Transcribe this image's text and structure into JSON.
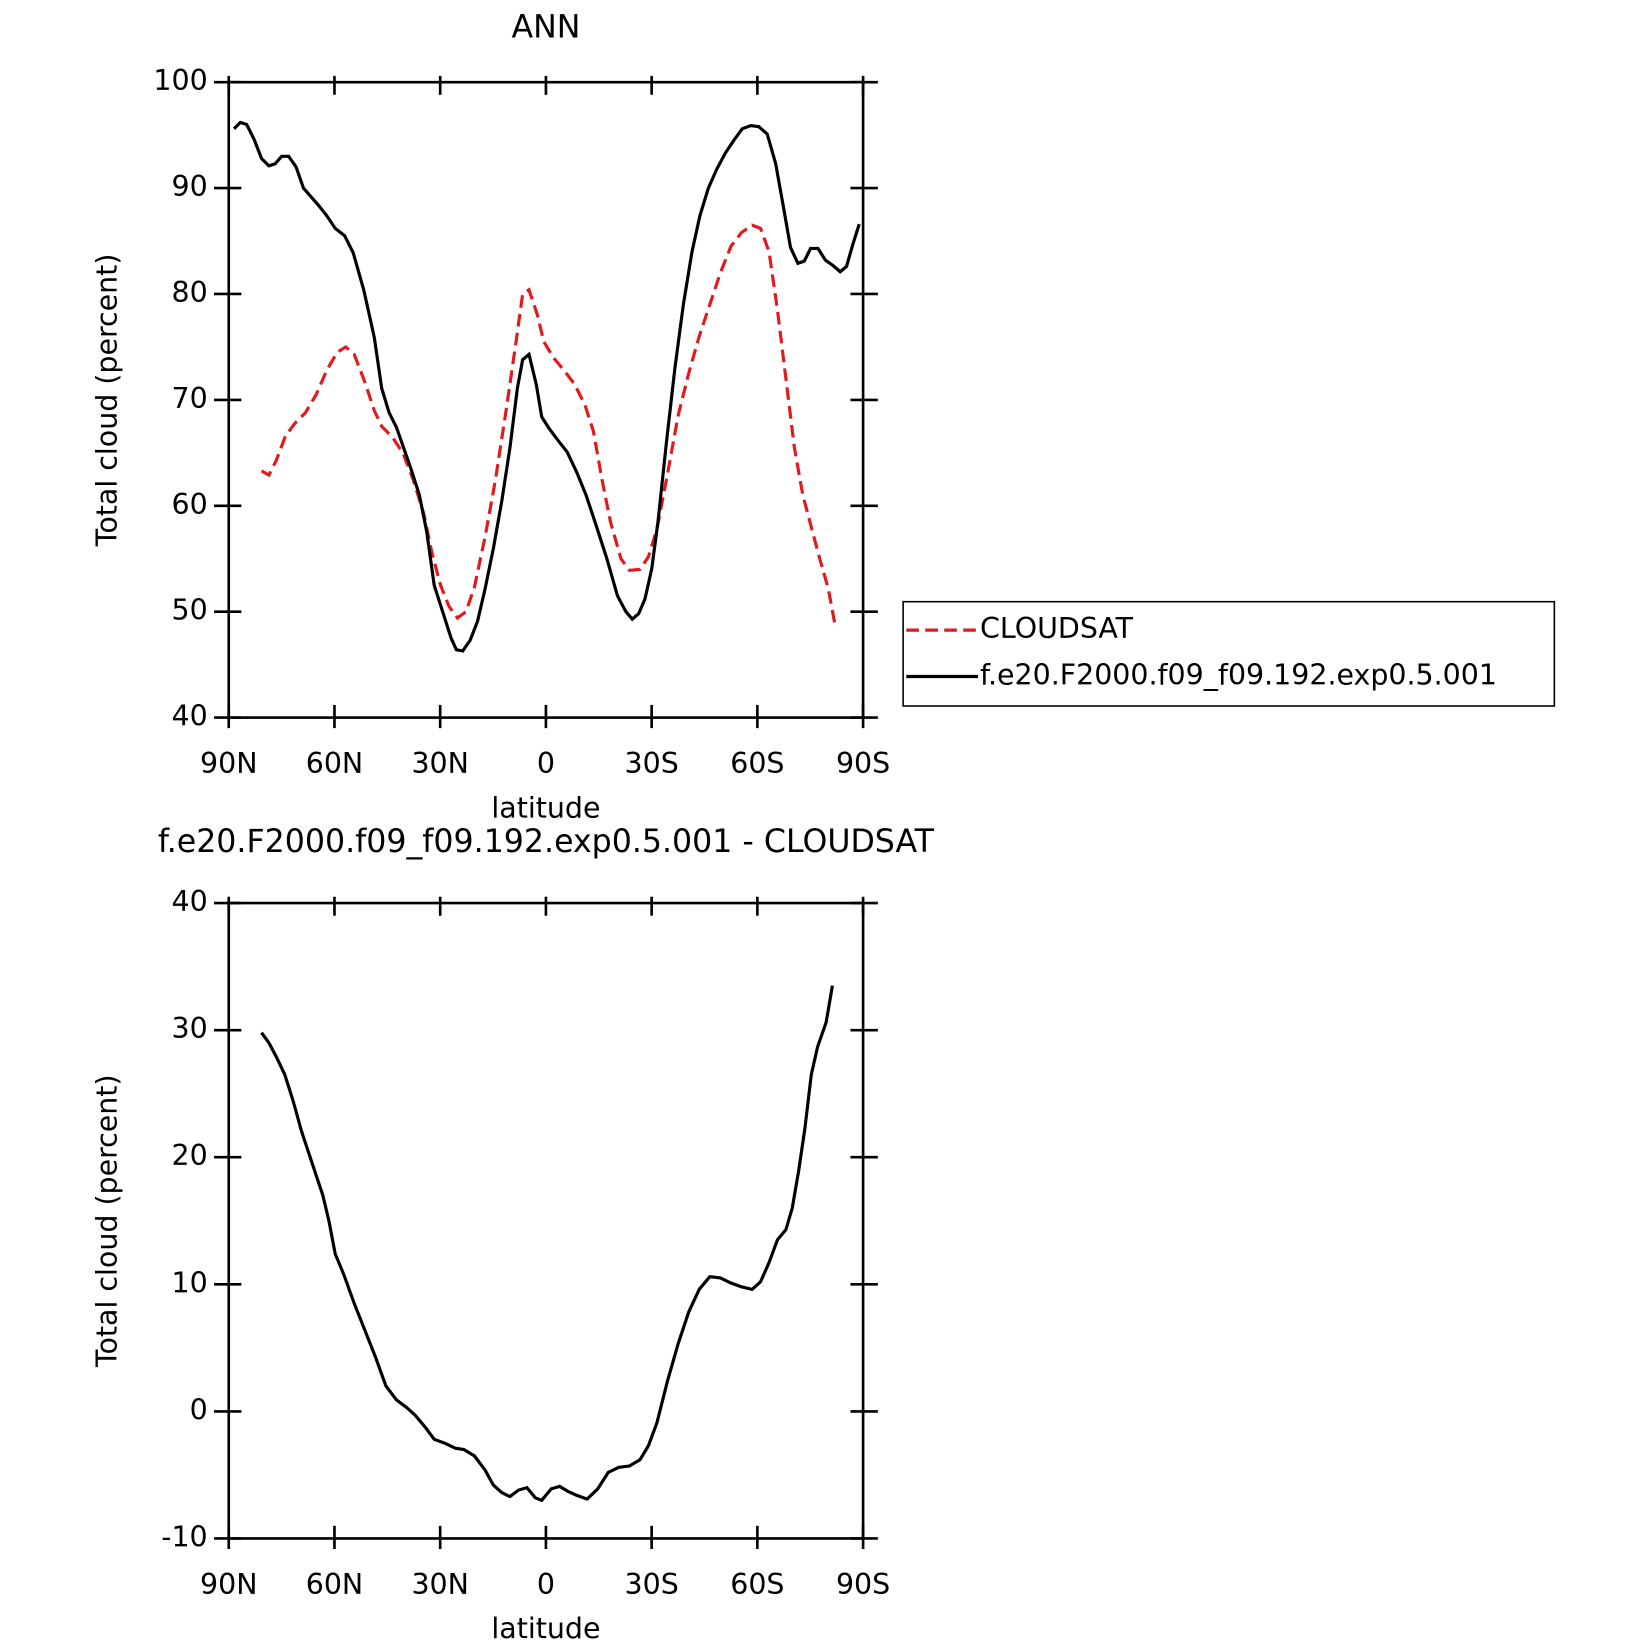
{
  "chart_data": [
    {
      "type": "line",
      "title": "ANN",
      "xlabel": "latitude",
      "ylabel": "Total cloud (percent)",
      "xlim": [
        90,
        -90
      ],
      "xticks": [
        {
          "value": 90,
          "label": "90N"
        },
        {
          "value": 60,
          "label": "60N"
        },
        {
          "value": 30,
          "label": "30N"
        },
        0,
        {
          "value": -30,
          "label": "30S"
        },
        {
          "value": -60,
          "label": "60S"
        },
        {
          "value": -90,
          "label": "90S"
        }
      ],
      "ylim": [
        40,
        100
      ],
      "yticks": [
        40,
        50,
        60,
        70,
        80,
        90,
        100
      ],
      "legend": "right",
      "series": [
        {
          "name": "CLOUDSAT",
          "color": "#e31a1c",
          "dashed": true,
          "x": [
            80.7,
            78.6,
            76.5,
            73.9,
            71.2,
            68.2,
            65.2,
            62.2,
            59.2,
            56.8,
            54.4,
            51.4,
            48.7,
            46.6,
            43.6,
            40.6,
            37.7,
            34.7,
            32.3,
            29.9,
            27.5,
            25.1,
            22.7,
            20.3,
            17.3,
            14.3,
            11.3,
            8.3,
            6.6,
            4.8,
            2.4,
            0.6,
            -2.1,
            -5.1,
            -8.1,
            -11.1,
            -13.5,
            -15.9,
            -18.3,
            -21.3,
            -23.7,
            -26.7,
            -29.1,
            -31.5,
            -34.5,
            -37.5,
            -40.5,
            -43.5,
            -46.5,
            -49.5,
            -52.5,
            -55.5,
            -58.5,
            -60.9,
            -63.3,
            -65.7,
            -68.1,
            -70.5,
            -72.9,
            -75.3,
            -77.7,
            -80.1,
            -81.9
          ],
          "values": [
            63.3,
            62.9,
            64.3,
            66.6,
            67.8,
            68.8,
            70.5,
            72.8,
            74.5,
            75.0,
            74.3,
            71.7,
            69.0,
            67.5,
            66.5,
            65.0,
            62.5,
            59.3,
            55.5,
            52.5,
            50.5,
            49.4,
            50.0,
            52.3,
            57.0,
            62.5,
            69.0,
            75.9,
            80.0,
            80.4,
            78.0,
            75.5,
            74.0,
            72.8,
            71.5,
            69.5,
            67.0,
            62.5,
            58.5,
            55.0,
            53.9,
            54.0,
            55.2,
            57.8,
            63.0,
            68.5,
            72.5,
            76.0,
            79.0,
            82.0,
            84.5,
            85.8,
            86.5,
            86.2,
            84.0,
            78.5,
            72.0,
            65.5,
            61.0,
            58.0,
            55.0,
            52.2,
            49.0
          ]
        },
        {
          "name": "f.e20.F2000.f09_f09.192.exp0.5.001",
          "color": "#000000",
          "dashed": false,
          "x": [
            88.5,
            86.7,
            84.9,
            82.8,
            80.7,
            78.6,
            76.8,
            75,
            73,
            70.9,
            68.8,
            66.7,
            64.6,
            62.2,
            59.8,
            57.1,
            54.7,
            51.7,
            48.7,
            46.6,
            44.5,
            42.4,
            40.4,
            38.3,
            35.9,
            33.8,
            31.7,
            29.3,
            26.9,
            25.4,
            23.6,
            21.5,
            19.4,
            17.3,
            14.9,
            12.5,
            10.2,
            8.1,
            6.6,
            4.8,
            2.7,
            1.2,
            -0.9,
            -3.6,
            -6,
            -8.7,
            -11.4,
            -14.4,
            -17.3,
            -20.3,
            -22.7,
            -24.5,
            -26.3,
            -28.1,
            -30,
            -31.8,
            -34.2,
            -36.6,
            -39,
            -41.4,
            -43.7,
            -46.1,
            -48.5,
            -50.9,
            -53.3,
            -55.7,
            -58.1,
            -60.4,
            -62.8,
            -65.2,
            -67.3,
            -69.4,
            -71.5,
            -73.3,
            -75.1,
            -77.2,
            -79.3,
            -81.4,
            -83.5,
            -85.3,
            -87.1,
            -88.9
          ],
          "values": [
            95.6,
            96.2,
            96.0,
            94.6,
            92.8,
            92.1,
            92.3,
            93.0,
            93.0,
            92.0,
            90.0,
            89.2,
            88.4,
            87.4,
            86.2,
            85.5,
            83.9,
            80.4,
            75.9,
            71.1,
            68.8,
            67.4,
            65.5,
            63.5,
            61.0,
            57.5,
            52.5,
            50.0,
            47.5,
            46.4,
            46.3,
            47.3,
            49.1,
            52.1,
            56.0,
            60.5,
            65.5,
            71.1,
            73.8,
            74.3,
            71.4,
            68.4,
            67.3,
            66.1,
            65.1,
            63.2,
            61.0,
            58.0,
            55.0,
            51.5,
            50.0,
            49.3,
            49.8,
            51.2,
            54.0,
            58.5,
            66.0,
            73.0,
            79.0,
            83.9,
            87.4,
            90.0,
            91.8,
            93.3,
            94.5,
            95.6,
            95.9,
            95.8,
            95.1,
            92.3,
            88.4,
            84.4,
            82.9,
            83.1,
            84.3,
            84.3,
            83.2,
            82.7,
            82.1,
            82.6,
            84.7,
            86.6
          ]
        }
      ]
    },
    {
      "type": "line",
      "title": "f.e20.F2000.f09_f09.192.exp0.5.001 - CLOUDSAT",
      "xlabel": "latitude",
      "ylabel": "Total cloud (percent)",
      "xlim": [
        90,
        -90
      ],
      "xticks": [
        {
          "value": 90,
          "label": "90N"
        },
        {
          "value": 60,
          "label": "60N"
        },
        {
          "value": 30,
          "label": "30N"
        },
        0,
        {
          "value": -30,
          "label": "30S"
        },
        {
          "value": -60,
          "label": "60S"
        },
        {
          "value": -90,
          "label": "90S"
        }
      ],
      "ylim": [
        -10,
        40
      ],
      "yticks": [
        -10,
        0,
        10,
        20,
        30,
        40
      ],
      "series": [
        {
          "color": "#000000",
          "dashed": false,
          "x": [
            80.7,
            78.6,
            76.5,
            74.1,
            71.7,
            69.3,
            66.3,
            63.3,
            61.5,
            59.8,
            57.4,
            54.4,
            51.4,
            48.4,
            45.4,
            42.4,
            39.5,
            37.1,
            34.1,
            31.7,
            28.7,
            25.7,
            23.3,
            20.3,
            17.3,
            14.9,
            12.5,
            10.2,
            7.8,
            5.4,
            3.0,
            1.2,
            -1.5,
            -3.9,
            -6.3,
            -8.7,
            -11.7,
            -14.7,
            -17.7,
            -20.7,
            -23.7,
            -26.7,
            -29.1,
            -31.5,
            -34.5,
            -37.5,
            -40.5,
            -43.5,
            -46.5,
            -49.5,
            -52.5,
            -55.5,
            -58.5,
            -60.9,
            -63.3,
            -65.7,
            -68.1,
            -69.9,
            -71.7,
            -73.5,
            -75.3,
            -77.1,
            -79.5,
            -81.3
          ],
          "values": [
            29.8,
            29.0,
            27.9,
            26.5,
            24.4,
            22.0,
            19.5,
            17.0,
            14.9,
            12.4,
            10.8,
            8.5,
            6.4,
            4.3,
            2.0,
            0.9,
            0.3,
            -0.3,
            -1.3,
            -2.2,
            -2.5,
            -2.9,
            -3.0,
            -3.5,
            -4.6,
            -5.8,
            -6.4,
            -6.7,
            -6.2,
            -6.0,
            -6.8,
            -7.0,
            -6.1,
            -5.9,
            -6.3,
            -6.6,
            -6.9,
            -6.1,
            -4.8,
            -4.4,
            -4.3,
            -3.8,
            -2.7,
            -0.9,
            2.4,
            5.3,
            7.8,
            9.6,
            10.6,
            10.5,
            10.1,
            9.8,
            9.6,
            10.2,
            11.7,
            13.5,
            14.3,
            16.0,
            18.9,
            22.3,
            26.5,
            28.7,
            30.6,
            33.5
          ]
        }
      ]
    }
  ]
}
